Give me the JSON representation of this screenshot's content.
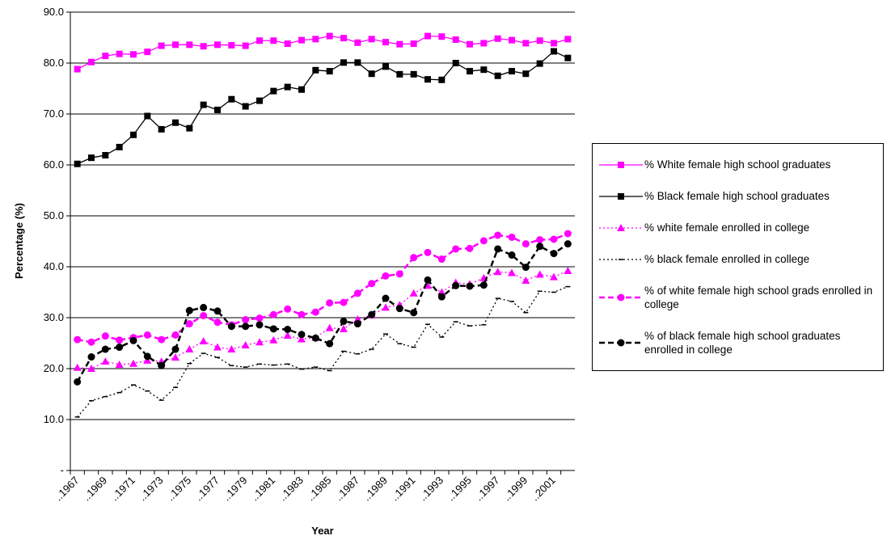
{
  "chart_data": {
    "type": "line",
    "y_label": "Percentage (%)",
    "x_label": "Year",
    "categories": [
      "..1967",
      null,
      "..1969",
      null,
      "..1971",
      null,
      "..1973",
      null,
      "..1975",
      null,
      "..1977",
      null,
      "..1979",
      null,
      "..1981",
      null,
      "..1983",
      null,
      "..1985",
      null,
      "..1987",
      null,
      "..1989",
      null,
      "..1991",
      null,
      "..1993",
      null,
      "..1995",
      null,
      "..1997",
      null,
      "..1999",
      null,
      "..2001",
      null
    ],
    "ylim": [
      0,
      90
    ],
    "yticks": [
      {
        "value": 0,
        "label": "-"
      },
      {
        "value": 10,
        "label": "10.0"
      },
      {
        "value": 20,
        "label": "20.0"
      },
      {
        "value": 30,
        "label": "30.0"
      },
      {
        "value": 40,
        "label": "40.0"
      },
      {
        "value": 50,
        "label": "50.0"
      },
      {
        "value": 60,
        "label": "60.0"
      },
      {
        "value": 70,
        "label": "70.0"
      },
      {
        "value": 80,
        "label": "80.0"
      },
      {
        "value": 90,
        "label": "90.0"
      }
    ],
    "grid": true,
    "series": [
      {
        "name": "% White female high school graduates",
        "color": "#ff00ff",
        "marker": "square",
        "dash": "solid",
        "values": [
          78.8,
          80.2,
          81.4,
          81.8,
          81.7,
          82.2,
          83.4,
          83.6,
          83.6,
          83.3,
          83.6,
          83.5,
          83.4,
          84.4,
          84.4,
          83.8,
          84.5,
          84.7,
          85.3,
          84.9,
          84.0,
          84.7,
          84.1,
          83.7,
          83.8,
          85.3,
          85.2,
          84.6,
          83.7,
          83.9,
          84.8,
          84.5,
          83.9,
          84.4,
          83.9,
          84.7
        ]
      },
      {
        "name": "% Black female high school graduates",
        "color": "#000000",
        "marker": "square",
        "dash": "solid",
        "values": [
          60.2,
          61.4,
          61.9,
          63.5,
          65.9,
          69.6,
          67.0,
          68.3,
          67.2,
          71.8,
          70.8,
          72.9,
          71.5,
          72.6,
          74.5,
          75.3,
          74.8,
          78.6,
          78.4,
          80.1,
          80.1,
          77.9,
          79.3,
          77.8,
          77.8,
          76.8,
          76.7,
          80.0,
          78.4,
          78.7,
          77.5,
          78.4,
          77.9,
          79.9,
          82.3,
          81.0
        ]
      },
      {
        "name": "% white female enrolled in college",
        "color": "#ff00ff",
        "marker": "triangle",
        "dash": "dotted",
        "values": [
          20.2,
          20.0,
          21.4,
          20.8,
          21.0,
          21.6,
          21.4,
          22.2,
          23.8,
          25.4,
          24.2,
          23.8,
          24.6,
          25.2,
          25.6,
          26.5,
          25.8,
          26.1,
          28.0,
          27.8,
          29.7,
          30.5,
          32.0,
          32.5,
          34.8,
          36.3,
          35.0,
          36.9,
          36.6,
          37.8,
          39.0,
          38.8,
          37.3,
          38.5,
          38.0,
          39.2
        ]
      },
      {
        "name": "% black female enrolled in college",
        "color": "#000000",
        "marker": "dash",
        "dash": "dotted",
        "values": [
          10.5,
          13.7,
          14.5,
          15.3,
          16.8,
          15.6,
          13.8,
          16.3,
          21.0,
          23.0,
          22.2,
          20.6,
          20.3,
          20.9,
          20.7,
          20.9,
          19.9,
          20.3,
          19.6,
          23.4,
          22.9,
          23.8,
          26.8,
          24.9,
          24.2,
          28.7,
          26.2,
          29.2,
          28.4,
          28.6,
          33.8,
          33.2,
          31.0,
          35.2,
          35.0,
          36.1
        ]
      },
      {
        "name": "% of white female high school grads enrolled in college",
        "color": "#ff00ff",
        "marker": "circle",
        "dash": "dashed",
        "values": [
          25.7,
          25.2,
          26.4,
          25.6,
          26.1,
          26.6,
          25.7,
          26.6,
          28.8,
          30.4,
          29.1,
          28.6,
          29.6,
          29.9,
          30.6,
          31.7,
          30.6,
          31.1,
          32.9,
          33.0,
          34.8,
          36.7,
          38.2,
          38.6,
          41.8,
          42.8,
          41.5,
          43.5,
          43.6,
          45.1,
          46.2,
          45.8,
          44.5,
          45.3,
          45.4,
          46.5
        ]
      },
      {
        "name": "% of black female high school graduates enrolled in college",
        "color": "#000000",
        "marker": "circle",
        "dash": "dashed",
        "values": [
          17.4,
          22.3,
          23.8,
          24.2,
          25.5,
          22.4,
          20.6,
          23.8,
          31.4,
          32.0,
          31.3,
          28.3,
          28.3,
          28.6,
          27.8,
          27.7,
          26.7,
          26.0,
          24.9,
          29.3,
          28.8,
          30.6,
          33.8,
          31.8,
          31.0,
          37.4,
          34.1,
          36.3,
          36.2,
          36.4,
          43.5,
          42.3,
          39.9,
          44.0,
          42.6,
          44.5
        ]
      }
    ]
  }
}
